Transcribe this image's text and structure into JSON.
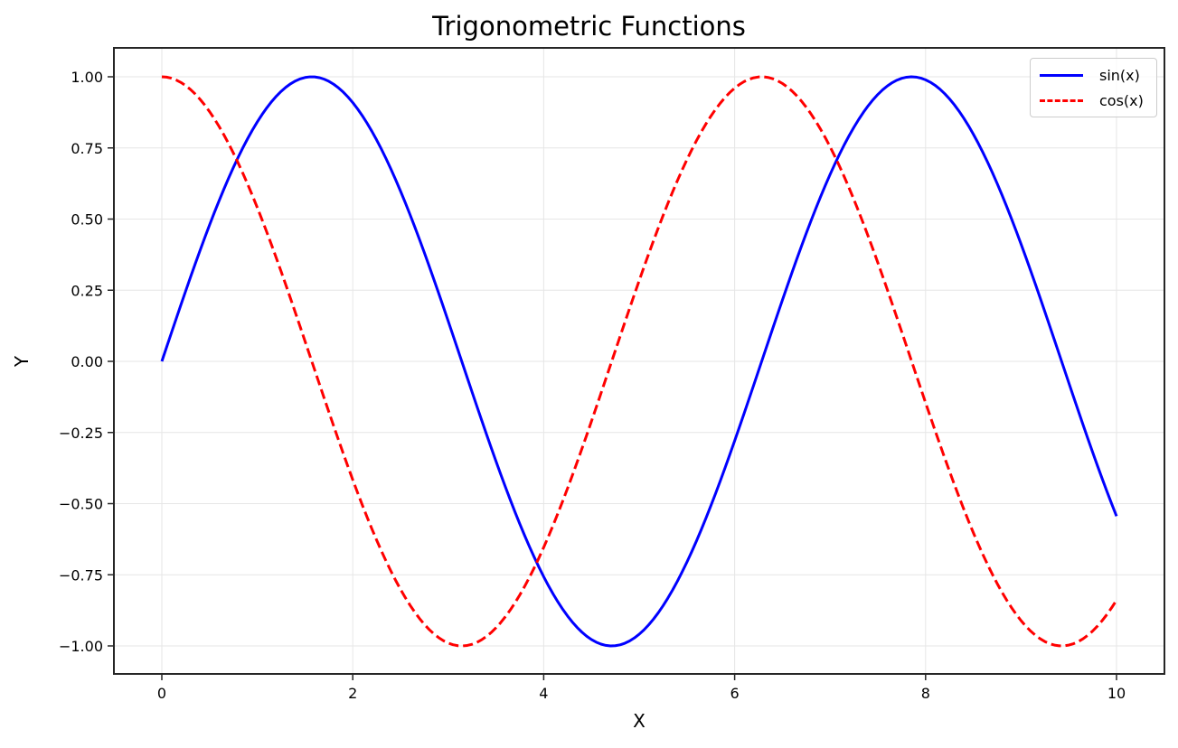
{
  "chart_data": {
    "type": "line",
    "title": "Trigonometric Functions",
    "xlabel": "X",
    "ylabel": "Y",
    "xlim": [
      -0.5,
      10.5
    ],
    "ylim": [
      -1.1,
      1.1
    ],
    "x_ticks": [
      "0",
      "2",
      "4",
      "6",
      "8",
      "10"
    ],
    "y_ticks": [
      "1.00",
      "0.75",
      "0.50",
      "0.25",
      "0.00",
      "−0.25",
      "−0.50",
      "−0.75",
      "−1.00"
    ],
    "grid": true,
    "legend_position": "upper right",
    "x": [
      0,
      0.5,
      1,
      1.5,
      2,
      2.5,
      3,
      3.5,
      4,
      4.5,
      5,
      5.5,
      6,
      6.5,
      7,
      7.5,
      8,
      8.5,
      9,
      9.5,
      10
    ],
    "series": [
      {
        "name": "sin(x)",
        "color": "#0000ff",
        "linestyle": "solid",
        "values": [
          0.0,
          0.479,
          0.841,
          0.997,
          0.909,
          0.598,
          0.141,
          -0.351,
          -0.757,
          -0.978,
          -0.959,
          -0.706,
          -0.279,
          0.215,
          0.657,
          0.938,
          0.989,
          0.798,
          0.412,
          -0.075,
          -0.544
        ]
      },
      {
        "name": "cos(x)",
        "color": "#ff0000",
        "linestyle": "dashed",
        "values": [
          1.0,
          0.878,
          0.54,
          0.071,
          -0.416,
          -0.801,
          -0.99,
          -0.936,
          -0.654,
          -0.211,
          0.284,
          0.709,
          0.96,
          0.977,
          0.754,
          0.347,
          -0.146,
          -0.602,
          -0.911,
          -0.997,
          -0.839
        ]
      }
    ]
  },
  "legend": {
    "items": [
      {
        "label": "sin(x)",
        "color": "#0000ff"
      },
      {
        "label": "cos(x)",
        "color": "#ff0000"
      }
    ]
  }
}
